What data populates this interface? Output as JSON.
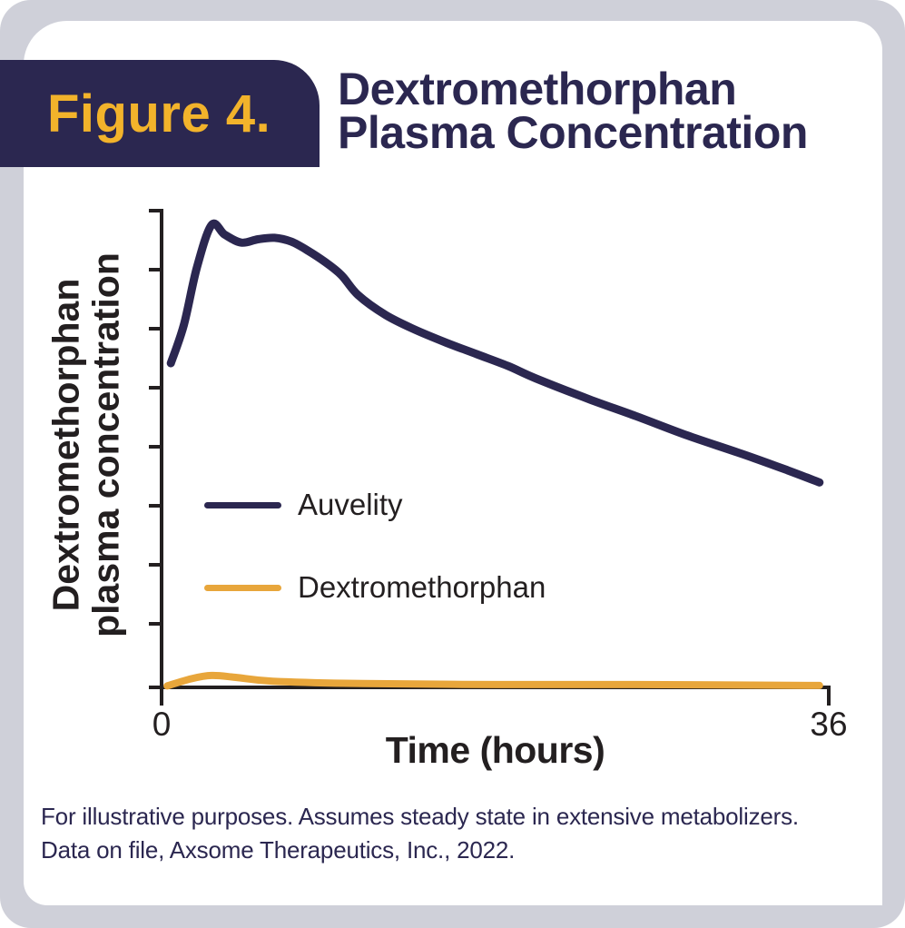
{
  "figure": {
    "label": "Figure 4."
  },
  "title": {
    "line1": "Dextromethorphan",
    "line2": "Plasma Concentration"
  },
  "footnote": {
    "lines": [
      "For illustrative purposes. Assumes steady state in extensive metabolizers.",
      "Data on file, Axsome Therapeutics, Inc., 2022."
    ]
  },
  "colors": {
    "navy": "#2B2750",
    "badge_gold": "#F2B32B",
    "curve_gold": "#E8A63B",
    "frame_gray": "#CFD0D9",
    "axis_black": "#231F20"
  },
  "chart_data": {
    "type": "line",
    "title": "Dextromethorphan Plasma Concentration",
    "xlabel": "Time (hours)",
    "ylabel_line1": "Dextromethorphan",
    "ylabel_line2": "plasma concentration",
    "xlim": [
      0,
      36
    ],
    "ylim": [
      0,
      100
    ],
    "x_tick_labels": [
      "0",
      "36"
    ],
    "y_tick_count": 8,
    "y_axis_note": "unlabeled relative concentration scale",
    "grid": false,
    "legend_position": "inside-left",
    "series": [
      {
        "name": "Auvelity",
        "color": "#2B2750",
        "points": [
          [
            0.5,
            68
          ],
          [
            1.2,
            76
          ],
          [
            1.9,
            88
          ],
          [
            2.7,
            97
          ],
          [
            3.4,
            95
          ],
          [
            4.3,
            93.3
          ],
          [
            5.2,
            94
          ],
          [
            6.1,
            94.3
          ],
          [
            7.0,
            93.5
          ],
          [
            7.9,
            91.6
          ],
          [
            8.8,
            89.3
          ],
          [
            9.7,
            86.5
          ],
          [
            10.6,
            82.3
          ],
          [
            12.1,
            78.1
          ],
          [
            13.7,
            75.0
          ],
          [
            15.3,
            72.4
          ],
          [
            17.0,
            69.9
          ],
          [
            18.7,
            67.4
          ],
          [
            20.2,
            64.8
          ],
          [
            23.1,
            60.4
          ],
          [
            25.6,
            56.9
          ],
          [
            28.4,
            52.8
          ],
          [
            31.3,
            49.0
          ],
          [
            33.8,
            45.5
          ],
          [
            35.5,
            43.0
          ]
        ]
      },
      {
        "name": "Dextromethorphan",
        "color": "#E8A63B",
        "points": [
          [
            0.3,
            0.3
          ],
          [
            1.6,
            1.8
          ],
          [
            2.7,
            2.5
          ],
          [
            4.0,
            2.1
          ],
          [
            6.0,
            1.3
          ],
          [
            10.9,
            0.8
          ],
          [
            18.2,
            0.6
          ],
          [
            25.6,
            0.6
          ],
          [
            35.5,
            0.4
          ]
        ]
      }
    ]
  }
}
